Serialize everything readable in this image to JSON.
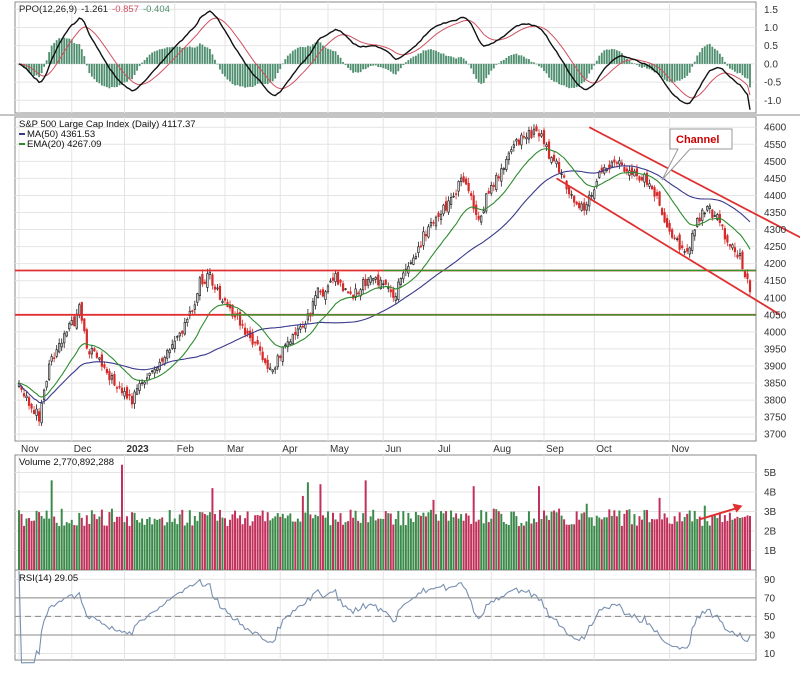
{
  "chart_data": [
    {
      "panel": "ppo",
      "type": "line",
      "legend": {
        "label": "PPO(12,26,9)",
        "ppo": "-1.261",
        "signal": "-0.857",
        "hist": "-0.404"
      },
      "y_ticks": [
        "1.5",
        "1.0",
        "0.5",
        "0.0",
        "-0.5",
        "-1.0"
      ],
      "ylim": [
        -1.35,
        1.7
      ]
    },
    {
      "panel": "price",
      "type": "candlestick",
      "title": "S&P 500 Large Cap Index (Daily) 4117.37",
      "legend": [
        {
          "label": "MA(50) 4361.53",
          "color": "#3a3a8c"
        },
        {
          "label": "EMA(20) 4267.09",
          "color": "#2e8b2e"
        }
      ],
      "y_ticks": [
        "4600",
        "4550",
        "4500",
        "4450",
        "4400",
        "4350",
        "4300",
        "4250",
        "4200",
        "4150",
        "4100",
        "4050",
        "4000",
        "3950",
        "3900",
        "3850",
        "3800",
        "3750",
        "3700"
      ],
      "ylim": [
        3680,
        4630
      ],
      "x_ticks": [
        "Nov",
        "Dec",
        "2023",
        "Feb",
        "Mar",
        "Apr",
        "May",
        "Jun",
        "Jul",
        "Aug",
        "Sep",
        "Oct",
        "Nov"
      ],
      "anchors": [
        [
          0,
          3840
        ],
        [
          5,
          3780
        ],
        [
          8,
          3750
        ],
        [
          12,
          3900
        ],
        [
          18,
          3990
        ],
        [
          22,
          4030
        ],
        [
          24,
          4080
        ],
        [
          27,
          3960
        ],
        [
          30,
          3930
        ],
        [
          34,
          3890
        ],
        [
          40,
          3830
        ],
        [
          45,
          3800
        ],
        [
          50,
          3860
        ],
        [
          53,
          3890
        ],
        [
          57,
          3910
        ],
        [
          62,
          3970
        ],
        [
          66,
          4020
        ],
        [
          70,
          4090
        ],
        [
          72,
          4150
        ],
        [
          76,
          4160
        ],
        [
          80,
          4110
        ],
        [
          84,
          4070
        ],
        [
          87,
          4040
        ],
        [
          90,
          3990
        ],
        [
          94,
          3970
        ],
        [
          96,
          3940
        ],
        [
          99,
          3900
        ],
        [
          102,
          3900
        ],
        [
          106,
          3960
        ],
        [
          110,
          3990
        ],
        [
          113,
          4010
        ],
        [
          116,
          4060
        ],
        [
          118,
          4120
        ],
        [
          121,
          4100
        ],
        [
          124,
          4140
        ],
        [
          126,
          4160
        ],
        [
          129,
          4130
        ],
        [
          132,
          4100
        ],
        [
          135,
          4120
        ],
        [
          138,
          4150
        ],
        [
          141,
          4160
        ],
        [
          145,
          4140
        ],
        [
          148,
          4120
        ],
        [
          150,
          4110
        ],
        [
          152,
          4170
        ],
        [
          155,
          4180
        ],
        [
          158,
          4230
        ],
        [
          161,
          4280
        ],
        [
          164,
          4310
        ],
        [
          167,
          4340
        ],
        [
          170,
          4370
        ],
        [
          173,
          4400
        ],
        [
          176,
          4440
        ],
        [
          178,
          4420
        ],
        [
          180,
          4400
        ],
        [
          182,
          4350
        ],
        [
          184,
          4330
        ],
        [
          186,
          4400
        ],
        [
          189,
          4430
        ],
        [
          192,
          4480
        ],
        [
          194,
          4500
        ],
        [
          196,
          4520
        ],
        [
          198,
          4550
        ],
        [
          201,
          4580
        ],
        [
          203,
          4585
        ],
        [
          205,
          4580
        ],
        [
          207,
          4580
        ],
        [
          209,
          4560
        ],
        [
          211,
          4520
        ],
        [
          214,
          4490
        ],
        [
          217,
          4450
        ],
        [
          220,
          4400
        ],
        [
          223,
          4360
        ],
        [
          225,
          4370
        ],
        [
          228,
          4400
        ],
        [
          231,
          4460
        ],
        [
          234,
          4480
        ],
        [
          237,
          4500
        ],
        [
          240,
          4490
        ],
        [
          243,
          4470
        ],
        [
          246,
          4460
        ],
        [
          249,
          4450
        ],
        [
          252,
          4420
        ],
        [
          255,
          4380
        ],
        [
          257,
          4320
        ],
        [
          259,
          4300
        ],
        [
          262,
          4260
        ],
        [
          265,
          4240
        ],
        [
          267,
          4250
        ],
        [
          270,
          4320
        ],
        [
          272,
          4350
        ],
        [
          275,
          4360
        ],
        [
          278,
          4330
        ],
        [
          280,
          4300
        ],
        [
          282,
          4260
        ],
        [
          285,
          4240
        ],
        [
          287,
          4220
        ],
        [
          289,
          4170
        ],
        [
          291,
          4117.37
        ]
      ],
      "last_close": 4117.37,
      "horizontal_lines": [
        {
          "value": 4180,
          "color": "#e03030",
          "extent": "full width"
        },
        {
          "value": 4180,
          "color": "#2e9a2e",
          "extent": "Jun-Oct"
        },
        {
          "value": 4050,
          "color": "#e03030",
          "extent": "full width"
        },
        {
          "value": 4050,
          "color": "#2e9a2e",
          "extent": "Apr-Oct"
        }
      ],
      "channel": {
        "color": "#e03030",
        "upper": [
          [
            227,
            4600
          ],
          [
            318,
            4250
          ]
        ],
        "lower": [
          [
            214,
            4450
          ],
          [
            303,
            4050
          ]
        ]
      },
      "annotation": {
        "text": "Channel",
        "color": "#cc0000"
      }
    },
    {
      "panel": "volume",
      "type": "bar",
      "legend": {
        "label": "Volume 2,770,892,288"
      },
      "y_ticks": [
        "5B",
        "4B",
        "3B",
        "2B",
        "1B"
      ],
      "ylim": [
        0,
        5.9
      ],
      "base_level": 2.7,
      "spikes": [
        [
          13,
          4.6
        ],
        [
          41,
          5.4
        ],
        [
          77,
          4.2
        ],
        [
          113,
          3.8
        ],
        [
          115,
          4.5
        ],
        [
          120,
          4.4
        ],
        [
          138,
          4.6
        ],
        [
          165,
          3.6
        ],
        [
          181,
          4.3
        ],
        [
          207,
          4.3
        ],
        [
          226,
          3.4
        ],
        [
          255,
          3.7
        ],
        [
          273,
          3.3
        ],
        [
          290,
          2.8
        ]
      ],
      "up_color": "#3a8a4a",
      "down_color": "#c0305a",
      "annotation_arrow_color": "#e03030"
    },
    {
      "panel": "rsi",
      "type": "line",
      "legend": {
        "label": "RSI(14) 29.05"
      },
      "y_ticks": [
        "90",
        "70",
        "50",
        "30",
        "10"
      ],
      "ylim": [
        3,
        100
      ],
      "reference_lines": [
        70,
        50,
        30
      ],
      "last_value": 29.05
    }
  ]
}
